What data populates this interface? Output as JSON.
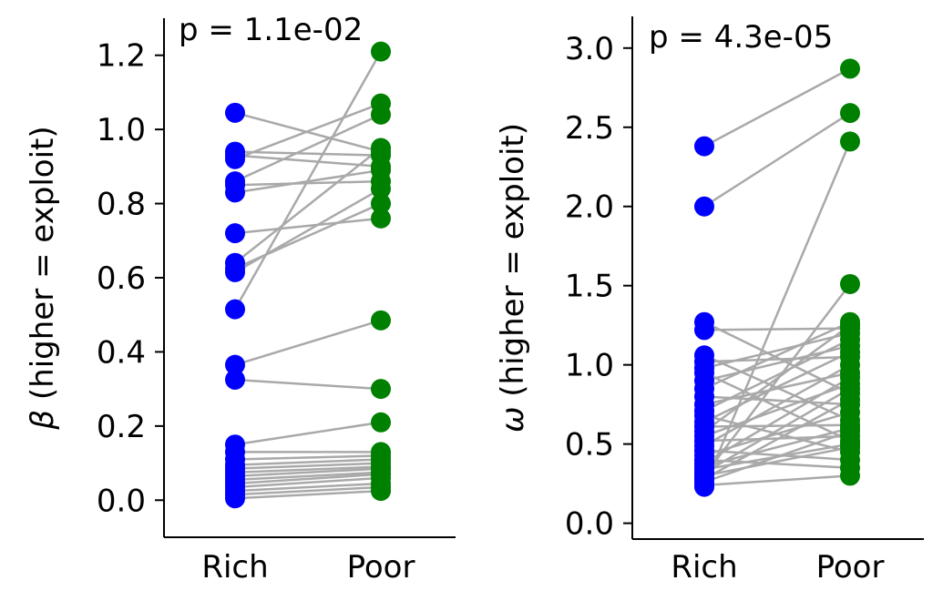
{
  "chart_data": [
    {
      "type": "scatter",
      "style": "paired-dots",
      "annotation": "p = 1.1e-02",
      "categories": [
        "Rich",
        "Poor"
      ],
      "ylabel_symbol": "β",
      "ylabel_text": " (higher = exploit)",
      "ylim": [
        -0.1,
        1.3
      ],
      "yticks": [
        {
          "value": 0.0,
          "label": "0.0"
        },
        {
          "value": 0.2,
          "label": "0.2"
        },
        {
          "value": 0.4,
          "label": "0.4"
        },
        {
          "value": 0.6,
          "label": "0.6"
        },
        {
          "value": 0.8,
          "label": "0.8"
        },
        {
          "value": 1.0,
          "label": "1.0"
        },
        {
          "value": 1.2,
          "label": "1.2"
        }
      ],
      "series": [
        {
          "color": "#0000ff"
        },
        {
          "color": "#008000"
        }
      ],
      "line_color": "#a9a9a9",
      "pairs": [
        [
          1.045,
          0.94
        ],
        [
          0.94,
          0.93
        ],
        [
          0.93,
          0.9
        ],
        [
          0.92,
          1.07
        ],
        [
          0.86,
          1.04
        ],
        [
          0.85,
          0.86
        ],
        [
          0.83,
          0.89
        ],
        [
          0.72,
          0.76
        ],
        [
          0.64,
          0.95
        ],
        [
          0.625,
          0.8
        ],
        [
          0.615,
          0.84
        ],
        [
          0.515,
          1.21
        ],
        [
          0.365,
          0.485
        ],
        [
          0.325,
          0.3
        ],
        [
          0.15,
          0.21
        ],
        [
          0.13,
          0.13
        ],
        [
          0.11,
          0.12
        ],
        [
          0.095,
          0.11
        ],
        [
          0.085,
          0.1
        ],
        [
          0.075,
          0.09
        ],
        [
          0.065,
          0.085
        ],
        [
          0.055,
          0.075
        ],
        [
          0.045,
          0.07
        ],
        [
          0.035,
          0.06
        ],
        [
          0.025,
          0.045
        ],
        [
          0.015,
          0.035
        ],
        [
          0.005,
          0.025
        ]
      ]
    },
    {
      "type": "scatter",
      "style": "paired-dots",
      "annotation": "p = 4.3e-05",
      "categories": [
        "Rich",
        "Poor"
      ],
      "ylabel_symbol": "ω",
      "ylabel_text": " (higher = exploit)",
      "ylim": [
        -0.1,
        3.2
      ],
      "yticks": [
        {
          "value": 0.0,
          "label": "0.0"
        },
        {
          "value": 0.5,
          "label": "0.5"
        },
        {
          "value": 1.0,
          "label": "1.0"
        },
        {
          "value": 1.5,
          "label": "1.5"
        },
        {
          "value": 2.0,
          "label": "2.0"
        },
        {
          "value": 2.5,
          "label": "2.5"
        },
        {
          "value": 3.0,
          "label": "3.0"
        }
      ],
      "series": [
        {
          "color": "#0000ff"
        },
        {
          "color": "#008000"
        }
      ],
      "line_color": "#a9a9a9",
      "pairs": [
        [
          2.38,
          2.87
        ],
        [
          2.0,
          2.59
        ],
        [
          1.27,
          0.82
        ],
        [
          1.22,
          1.23
        ],
        [
          1.06,
          0.65
        ],
        [
          1.02,
          1.05
        ],
        [
          0.98,
          1.2
        ],
        [
          0.95,
          0.52
        ],
        [
          0.9,
          1.12
        ],
        [
          0.85,
          1.27
        ],
        [
          0.8,
          0.75
        ],
        [
          0.75,
          0.95
        ],
        [
          0.71,
          1.16
        ],
        [
          0.68,
          0.45
        ],
        [
          0.64,
          1.08
        ],
        [
          0.61,
          0.62
        ],
        [
          0.58,
          1.25
        ],
        [
          0.55,
          0.88
        ],
        [
          0.52,
          0.55
        ],
        [
          0.49,
          1.0
        ],
        [
          0.46,
          0.4
        ],
        [
          0.43,
          0.7
        ],
        [
          0.4,
          0.35
        ],
        [
          0.38,
          0.92
        ],
        [
          0.36,
          0.6
        ],
        [
          0.34,
          0.5
        ],
        [
          0.32,
          0.85
        ],
        [
          0.3,
          0.48
        ],
        [
          0.28,
          0.78
        ],
        [
          0.26,
          0.58
        ],
        [
          0.24,
          0.3
        ],
        [
          0.23,
          2.41
        ],
        [
          0.3,
          1.51
        ]
      ]
    }
  ]
}
